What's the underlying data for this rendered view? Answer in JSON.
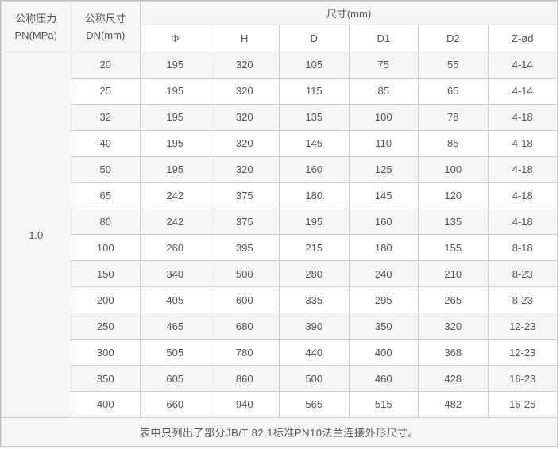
{
  "table": {
    "header": {
      "pn_line1": "公称压力",
      "pn_line2": "PN(MPa)",
      "dn_line1": "公称尺寸",
      "dn_line2": "DN(mm)",
      "span_label": "尺寸(mm)",
      "dim_columns": [
        "Φ",
        "H",
        "D",
        "D1",
        "D2",
        "Z-ød"
      ]
    },
    "pn_value": "1.0",
    "rows": [
      {
        "dn": "20",
        "phi": "195",
        "h": "320",
        "d": "105",
        "d1": "75",
        "d2": "55",
        "z_od": "4-14"
      },
      {
        "dn": "25",
        "phi": "195",
        "h": "320",
        "d": "115",
        "d1": "85",
        "d2": "65",
        "z_od": "4-14"
      },
      {
        "dn": "32",
        "phi": "195",
        "h": "320",
        "d": "135",
        "d1": "100",
        "d2": "78",
        "z_od": "4-18"
      },
      {
        "dn": "40",
        "phi": "195",
        "h": "320",
        "d": "145",
        "d1": "110",
        "d2": "85",
        "z_od": "4-18"
      },
      {
        "dn": "50",
        "phi": "195",
        "h": "320",
        "d": "160",
        "d1": "125",
        "d2": "100",
        "z_od": "4-18"
      },
      {
        "dn": "65",
        "phi": "242",
        "h": "375",
        "d": "180",
        "d1": "145",
        "d2": "120",
        "z_od": "4-18"
      },
      {
        "dn": "80",
        "phi": "242",
        "h": "375",
        "d": "195",
        "d1": "160",
        "d2": "135",
        "z_od": "4-18"
      },
      {
        "dn": "100",
        "phi": "260",
        "h": "395",
        "d": "215",
        "d1": "180",
        "d2": "155",
        "z_od": "8-18"
      },
      {
        "dn": "150",
        "phi": "340",
        "h": "500",
        "d": "280",
        "d1": "240",
        "d2": "210",
        "z_od": "8-23"
      },
      {
        "dn": "200",
        "phi": "405",
        "h": "600",
        "d": "335",
        "d1": "295",
        "d2": "265",
        "z_od": "8-23"
      },
      {
        "dn": "250",
        "phi": "465",
        "h": "680",
        "d": "390",
        "d1": "350",
        "d2": "320",
        "z_od": "12-23"
      },
      {
        "dn": "300",
        "phi": "505",
        "h": "780",
        "d": "440",
        "d1": "400",
        "d2": "368",
        "z_od": "12-23"
      },
      {
        "dn": "350",
        "phi": "605",
        "h": "860",
        "d": "500",
        "d1": "460",
        "d2": "428",
        "z_od": "16-23"
      },
      {
        "dn": "400",
        "phi": "660",
        "h": "940",
        "d": "565",
        "d1": "515",
        "d2": "482",
        "z_od": "16-25"
      }
    ],
    "footer_note": "表中只列出了部分JB/T 82.1标准PN10法兰连接外形尺寸。"
  },
  "colors": {
    "shaded_row_bg": "#f5f5f5",
    "plain_row_bg": "#ffffff",
    "border": "#cecece",
    "outer_border": "#c3c3c3",
    "text": "#555555"
  },
  "chart_data": {
    "type": "table",
    "title": "尺寸(mm)",
    "column_group_label": "尺寸(mm)",
    "columns": [
      "公称压力 PN(MPa)",
      "公称尺寸 DN(mm)",
      "Φ",
      "H",
      "D",
      "D1",
      "D2",
      "Z-ød"
    ],
    "pn_value": "1.0",
    "rows": [
      [
        20,
        195,
        320,
        105,
        75,
        55,
        "4-14"
      ],
      [
        25,
        195,
        320,
        115,
        85,
        65,
        "4-14"
      ],
      [
        32,
        195,
        320,
        135,
        100,
        78,
        "4-18"
      ],
      [
        40,
        195,
        320,
        145,
        110,
        85,
        "4-18"
      ],
      [
        50,
        195,
        320,
        160,
        125,
        100,
        "4-18"
      ],
      [
        65,
        242,
        375,
        180,
        145,
        120,
        "4-18"
      ],
      [
        80,
        242,
        375,
        195,
        160,
        135,
        "4-18"
      ],
      [
        100,
        260,
        395,
        215,
        180,
        155,
        "8-18"
      ],
      [
        150,
        340,
        500,
        280,
        240,
        210,
        "8-23"
      ],
      [
        200,
        405,
        600,
        335,
        295,
        265,
        "8-23"
      ],
      [
        250,
        465,
        680,
        390,
        350,
        320,
        "12-23"
      ],
      [
        300,
        505,
        780,
        440,
        400,
        368,
        "12-23"
      ],
      [
        350,
        605,
        860,
        500,
        460,
        428,
        "16-23"
      ],
      [
        400,
        660,
        940,
        565,
        515,
        482,
        "16-25"
      ]
    ],
    "note": "表中只列出了部分JB/T 82.1标准PN10法兰连接外形尺寸。"
  }
}
